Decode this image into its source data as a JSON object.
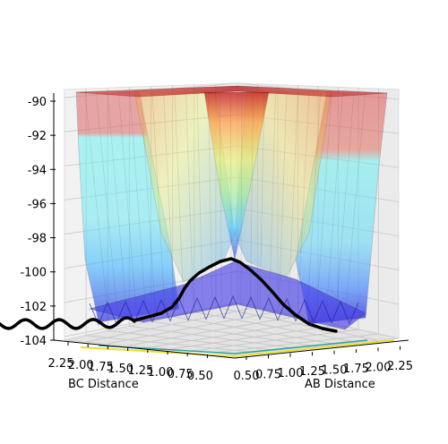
{
  "chart_data": {
    "type": "surface3d",
    "zlim": [
      -104,
      -90
    ],
    "z_ticks": [
      -90,
      -92,
      -94,
      -96,
      -98,
      -100,
      -102,
      -104
    ],
    "bc_ticks": [
      "2.25",
      "2.00",
      "1.75",
      "1.50",
      "1.25",
      "1.00",
      "0.75",
      "0.50"
    ],
    "ab_ticks": [
      "0.50",
      "0.75",
      "1.00",
      "1.25",
      "1.50",
      "1.75",
      "2.00",
      "2.25"
    ],
    "bc_label": "BC Distance",
    "ab_label": "AB Distance",
    "colormap": [
      "#0000c8",
      "#33b5ff",
      "#66f0f0",
      "#e6f064",
      "#ffb040",
      "#e04c2c",
      "#b40000"
    ],
    "grid": true,
    "trajectory": {
      "color": "#000000",
      "description_points": [
        {
          "ab": 0.3,
          "bc": 2.6,
          "z": -102.4
        },
        {
          "ab": 0.55,
          "bc": 1.6,
          "z": -103.0
        },
        {
          "ab": 0.74,
          "bc": 0.95,
          "z": -100.2
        },
        {
          "ab": 0.95,
          "bc": 0.75,
          "z": -99.3
        },
        {
          "ab": 1.4,
          "bc": 0.75,
          "z": -101.6
        },
        {
          "ab": 2.1,
          "bc": 0.75,
          "z": -103.2
        }
      ]
    }
  }
}
